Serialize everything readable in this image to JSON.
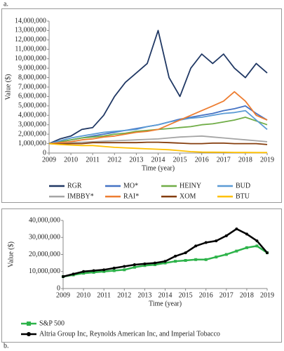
{
  "chart_data": [
    {
      "type": "line",
      "panel_label": "a.",
      "x_label": "Time (year)",
      "y_label": "Value ($)",
      "x": [
        2009,
        2009.5,
        2010,
        2010.5,
        2011,
        2011.5,
        2012,
        2012.5,
        2013,
        2013.5,
        2014,
        2014.5,
        2015,
        2015.5,
        2016,
        2016.5,
        2017,
        2017.5,
        2018,
        2018.5,
        2019
      ],
      "xlim": [
        2009,
        2019
      ],
      "xticks": [
        2009,
        2010,
        2011,
        2012,
        2013,
        2014,
        2015,
        2016,
        2017,
        2018,
        2019
      ],
      "ylim": [
        0,
        14000000
      ],
      "yticks": [
        0,
        {
          "value": 1000000,
          "label": "1,000,000"
        },
        {
          "value": 2000000,
          "label": "2,000,000"
        },
        {
          "value": 3000000,
          "label": "3,000,000"
        },
        {
          "value": 4000000,
          "label": "4,000,000"
        },
        {
          "value": 5000000,
          "label": "5,000,000"
        },
        {
          "value": 6000000,
          "label": "6,000,000"
        },
        {
          "value": 7000000,
          "label": "7,000,000"
        },
        {
          "value": 8000000,
          "label": "8,000,000"
        },
        {
          "value": 9000000,
          "label": "9,000,000"
        },
        {
          "value": 10000000,
          "label": "10,000,000"
        },
        {
          "value": 11000000,
          "label": "11,000,000"
        },
        {
          "value": 12000000,
          "label": "12,000,000"
        },
        {
          "value": 13000000,
          "label": "13,000,000"
        },
        {
          "value": 14000000,
          "label": "14,000,000"
        }
      ],
      "series": [
        {
          "name": "RGR",
          "color": "#203864",
          "values": [
            1000000,
            1500000,
            1800000,
            2500000,
            2700000,
            4000000,
            6000000,
            7500000,
            8500000,
            9500000,
            13000000,
            8000000,
            6000000,
            9000000,
            10500000,
            9500000,
            10500000,
            9000000,
            8000000,
            9500000,
            8500000
          ]
        },
        {
          "name": "MO*",
          "color": "#4472c4",
          "values": [
            1000000,
            1200000,
            1400000,
            1600000,
            1800000,
            2000000,
            2200000,
            2400000,
            2600000,
            2800000,
            3000000,
            3300000,
            3600000,
            3800000,
            4000000,
            4200000,
            4500000,
            4700000,
            5000000,
            4200000,
            3500000
          ]
        },
        {
          "name": "HEINY",
          "color": "#70ad47",
          "values": [
            1000000,
            1200000,
            1400000,
            1600000,
            1700000,
            1800000,
            2000000,
            2100000,
            2300000,
            2400000,
            2500000,
            2600000,
            2700000,
            2800000,
            3000000,
            3100000,
            3300000,
            3500000,
            3800000,
            3400000,
            3000000
          ]
        },
        {
          "name": "BUD",
          "color": "#5b9bd5",
          "values": [
            1000000,
            1300000,
            1600000,
            1800000,
            2000000,
            2200000,
            2300000,
            2400000,
            2500000,
            2800000,
            3000000,
            3300000,
            3500000,
            3700000,
            3800000,
            4000000,
            4200000,
            4300000,
            4500000,
            3500000,
            2500000
          ]
        },
        {
          "name": "IMBBY*",
          "color": "#a5a5a5",
          "values": [
            1000000,
            1050000,
            1100000,
            1150000,
            1200000,
            1250000,
            1300000,
            1350000,
            1400000,
            1450000,
            1500000,
            1600000,
            1700000,
            1750000,
            1800000,
            1700000,
            1600000,
            1500000,
            1400000,
            1300000,
            1200000
          ]
        },
        {
          "name": "RAI*",
          "color": "#ed7d31",
          "values": [
            1000000,
            1100000,
            1200000,
            1400000,
            1500000,
            1700000,
            1800000,
            2000000,
            2200000,
            2300000,
            2500000,
            3000000,
            3500000,
            4000000,
            4500000,
            5000000,
            5500000,
            6500000,
            5500000,
            4000000,
            3500000
          ]
        },
        {
          "name": "XOM",
          "color": "#843c0c",
          "values": [
            1000000,
            950000,
            1000000,
            1000000,
            1100000,
            1100000,
            1100000,
            1100000,
            1100000,
            1150000,
            1150000,
            1100000,
            1050000,
            1000000,
            1000000,
            1050000,
            1050000,
            1000000,
            1000000,
            1000000,
            900000
          ]
        },
        {
          "name": "BTU",
          "color": "#ffc000",
          "values": [
            1000000,
            900000,
            850000,
            800000,
            800000,
            700000,
            600000,
            550000,
            500000,
            450000,
            400000,
            350000,
            250000,
            150000,
            100000,
            90000,
            80000,
            70000,
            60000,
            55000,
            50000
          ]
        }
      ]
    },
    {
      "type": "line",
      "panel_label": "b.",
      "x_label": "Time (year)",
      "y_label": "Value ($)",
      "x": [
        2009,
        2009.5,
        2010,
        2010.5,
        2011,
        2011.5,
        2012,
        2012.5,
        2013,
        2013.5,
        2014,
        2014.5,
        2015,
        2015.5,
        2016,
        2016.5,
        2017,
        2017.5,
        2018,
        2018.5,
        2019
      ],
      "xlim": [
        2009,
        2019
      ],
      "xticks": [
        2009,
        2010,
        2011,
        2012,
        2013,
        2014,
        2015,
        2016,
        2017,
        2018,
        2019
      ],
      "ylim": [
        0,
        40000000
      ],
      "yticks": [
        0,
        {
          "value": 10000000,
          "label": "10,000,000"
        },
        {
          "value": 20000000,
          "label": "20,000,000"
        },
        {
          "value": 30000000,
          "label": "30,000,000"
        },
        {
          "value": 40000000,
          "label": "40,000,000"
        }
      ],
      "series": [
        {
          "name": "S&P 500",
          "color": "#2db34a",
          "marker": "square",
          "values": [
            7000000,
            8000000,
            9000000,
            9500000,
            10000000,
            10500000,
            11000000,
            12500000,
            13500000,
            14000000,
            15000000,
            16000000,
            16500000,
            17000000,
            17000000,
            18500000,
            20000000,
            22000000,
            24000000,
            25000000,
            21000000
          ]
        },
        {
          "name": "Altria Group Inc, Reynolds American Inc, and Imperial Tobacco",
          "color": "#000000",
          "marker": "circle",
          "values": [
            7000000,
            8500000,
            10000000,
            10500000,
            11000000,
            12000000,
            13000000,
            14000000,
            14500000,
            15000000,
            16000000,
            19000000,
            21000000,
            25000000,
            27000000,
            28000000,
            31000000,
            35000000,
            32000000,
            28000000,
            21000000
          ]
        }
      ]
    }
  ]
}
